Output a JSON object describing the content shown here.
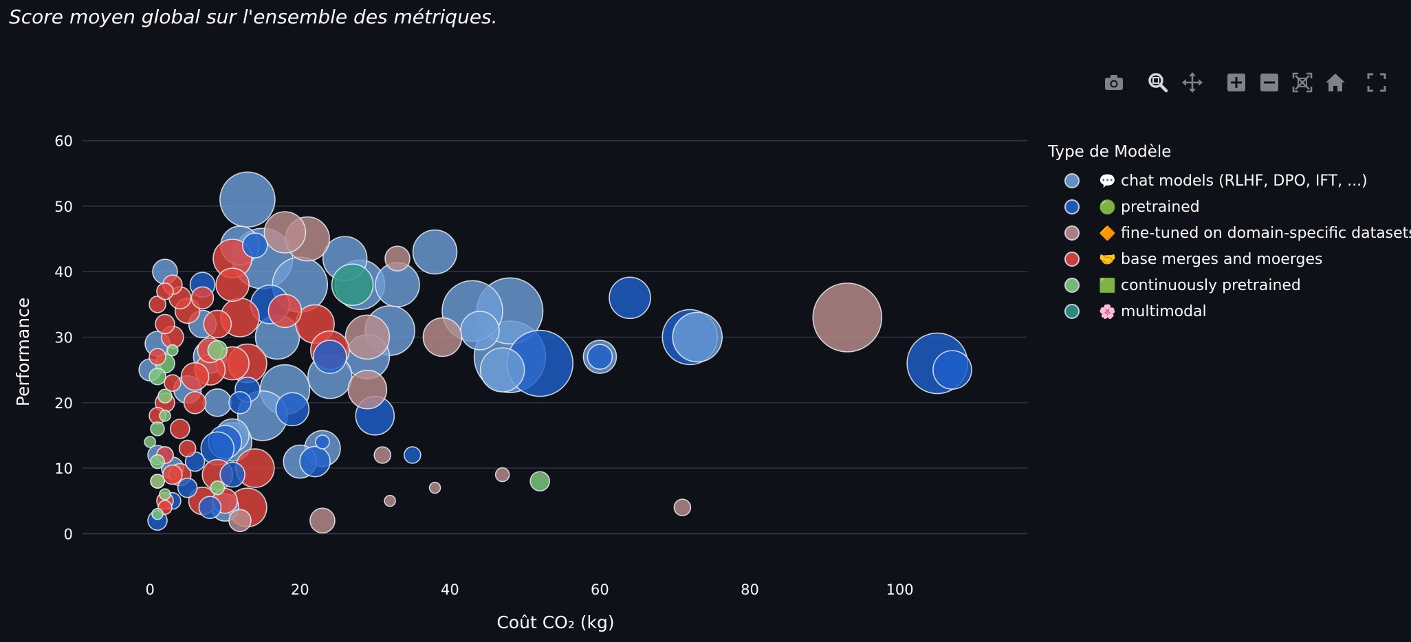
{
  "caption": "Score moyen global sur l'ensemble des métriques.",
  "toolbar": [
    {
      "name": "camera-icon",
      "label": "Download plot as png"
    },
    {
      "name": "zoom-icon",
      "label": "Zoom"
    },
    {
      "name": "pan-icon",
      "label": "Pan"
    },
    {
      "name": "zoom-in-icon",
      "label": "Zoom in"
    },
    {
      "name": "zoom-out-icon",
      "label": "Zoom out"
    },
    {
      "name": "autoscale-icon",
      "label": "Autoscale"
    },
    {
      "name": "home-icon",
      "label": "Reset axes"
    },
    {
      "name": "fullscreen-icon",
      "label": "Fullscreen"
    }
  ],
  "chart_data": {
    "type": "scatter",
    "xlabel": "Coût CO₂ (kg)",
    "ylabel": "Performance",
    "xlim": [
      -9,
      117
    ],
    "ylim": [
      -5,
      63
    ],
    "xticks": [
      0,
      20,
      40,
      60,
      80,
      100
    ],
    "yticks": [
      0,
      10,
      20,
      30,
      40,
      50,
      60
    ],
    "grid": true,
    "legend_title": "Type de Modèle",
    "legend_position": "right",
    "series": [
      {
        "name": "chat models (RLHF, DPO, IFT, ...)",
        "icon": "💬",
        "color": "#6b9cd6",
        "points": [
          [
            13,
            51,
            20
          ],
          [
            12,
            44,
            14
          ],
          [
            15,
            42,
            22
          ],
          [
            20,
            38,
            20
          ],
          [
            26,
            42,
            16
          ],
          [
            28,
            38,
            18
          ],
          [
            33,
            38,
            16
          ],
          [
            38,
            43,
            16
          ],
          [
            43,
            34,
            22
          ],
          [
            48,
            34,
            24
          ],
          [
            44,
            31,
            14
          ],
          [
            47,
            25,
            16
          ],
          [
            48,
            27,
            26
          ],
          [
            60,
            27,
            12
          ],
          [
            73,
            30,
            18
          ],
          [
            32,
            31,
            18
          ],
          [
            29,
            27,
            16
          ],
          [
            24,
            24,
            16
          ],
          [
            18,
            22,
            18
          ],
          [
            15,
            18,
            18
          ],
          [
            11,
            14,
            14
          ],
          [
            11,
            15,
            12
          ],
          [
            10,
            4,
            10
          ],
          [
            23,
            13,
            13
          ],
          [
            20,
            11,
            12
          ],
          [
            17,
            30,
            16
          ],
          [
            8,
            27,
            12
          ],
          [
            5,
            22,
            10
          ],
          [
            3,
            10,
            8
          ],
          [
            2,
            40,
            9
          ],
          [
            1,
            29,
            9
          ],
          [
            1,
            12,
            7
          ],
          [
            0,
            25,
            8
          ],
          [
            7,
            32,
            10
          ],
          [
            9,
            20,
            10
          ]
        ]
      },
      {
        "name": "pretrained",
        "icon": "🟢",
        "color": "#1f5fc9",
        "points": [
          [
            105,
            26,
            22
          ],
          [
            107,
            25,
            14
          ],
          [
            72,
            30,
            20
          ],
          [
            52,
            26,
            24
          ],
          [
            64,
            36,
            15
          ],
          [
            60,
            27,
            9
          ],
          [
            35,
            12,
            6
          ],
          [
            30,
            18,
            14
          ],
          [
            24,
            27,
            12
          ],
          [
            19,
            19,
            12
          ],
          [
            22,
            11,
            11
          ],
          [
            23,
            14,
            5
          ],
          [
            16,
            35,
            14
          ],
          [
            14,
            44,
            9
          ],
          [
            13,
            22,
            9
          ],
          [
            12,
            20,
            8
          ],
          [
            10,
            14,
            12
          ],
          [
            9,
            13,
            12
          ],
          [
            7,
            38,
            9
          ],
          [
            6,
            11,
            7
          ],
          [
            8,
            4,
            8
          ],
          [
            5,
            7,
            7
          ],
          [
            11,
            9,
            9
          ],
          [
            1,
            2,
            7
          ],
          [
            2,
            12,
            6
          ],
          [
            3,
            5,
            6
          ]
        ]
      },
      {
        "name": "fine-tuned on domain-specific datasets",
        "icon": "🔶",
        "color": "#ba8c8c",
        "points": [
          [
            93,
            33,
            25
          ],
          [
            71,
            4,
            6
          ],
          [
            47,
            9,
            5
          ],
          [
            38,
            7,
            4
          ],
          [
            32,
            5,
            4
          ],
          [
            31,
            12,
            6
          ],
          [
            33,
            42,
            9
          ],
          [
            39,
            30,
            14
          ],
          [
            29,
            22,
            14
          ],
          [
            29,
            30,
            16
          ],
          [
            23,
            2,
            9
          ],
          [
            12,
            2,
            8
          ],
          [
            21,
            45,
            16
          ],
          [
            18,
            46,
            15
          ]
        ]
      },
      {
        "name": "base merges and moerges",
        "icon": "🤝",
        "color": "#e2453e",
        "points": [
          [
            11,
            42,
            14
          ],
          [
            11,
            38,
            12
          ],
          [
            12,
            33,
            14
          ],
          [
            9,
            32,
            10
          ],
          [
            11,
            26,
            12
          ],
          [
            13,
            26,
            14
          ],
          [
            8,
            25,
            11
          ],
          [
            6,
            24,
            10
          ],
          [
            5,
            34,
            9
          ],
          [
            4,
            36,
            8
          ],
          [
            6,
            20,
            8
          ],
          [
            2,
            32,
            7
          ],
          [
            3,
            30,
            8
          ],
          [
            2,
            20,
            7
          ],
          [
            2,
            12,
            6
          ],
          [
            3,
            9,
            7
          ],
          [
            1,
            35,
            6
          ],
          [
            1,
            27,
            6
          ],
          [
            1,
            18,
            6
          ],
          [
            1,
            8,
            5
          ],
          [
            13,
            4,
            14
          ],
          [
            14,
            10,
            14
          ],
          [
            9,
            9,
            11
          ],
          [
            7,
            5,
            10
          ],
          [
            10,
            5,
            9
          ],
          [
            4,
            9,
            8
          ],
          [
            2,
            5,
            6
          ],
          [
            22,
            32,
            14
          ],
          [
            24,
            28,
            14
          ],
          [
            18,
            34,
            12
          ],
          [
            8,
            28,
            9
          ],
          [
            3,
            23,
            6
          ],
          [
            4,
            16,
            7
          ],
          [
            5,
            13,
            6
          ],
          [
            3,
            38,
            7
          ],
          [
            2,
            37,
            6
          ],
          [
            7,
            36,
            8
          ],
          [
            2,
            4,
            5
          ]
        ]
      },
      {
        "name": "continuously pretrained",
        "icon": "🟩",
        "color": "#7fcc7f",
        "points": [
          [
            52,
            8,
            7
          ],
          [
            9,
            28,
            7
          ],
          [
            9,
            7,
            5
          ],
          [
            2,
            26,
            7
          ],
          [
            1,
            24,
            6
          ],
          [
            1,
            16,
            5
          ],
          [
            1,
            11,
            5
          ],
          [
            1,
            8,
            5
          ],
          [
            2,
            21,
            5
          ],
          [
            0,
            14,
            4
          ],
          [
            2,
            6,
            4
          ],
          [
            3,
            28,
            4
          ],
          [
            2,
            18,
            4
          ],
          [
            1,
            3,
            4
          ]
        ]
      },
      {
        "name": "multimodal",
        "icon": "🌸",
        "color": "#2d9683",
        "points": [
          [
            27,
            38,
            15
          ]
        ]
      }
    ]
  }
}
